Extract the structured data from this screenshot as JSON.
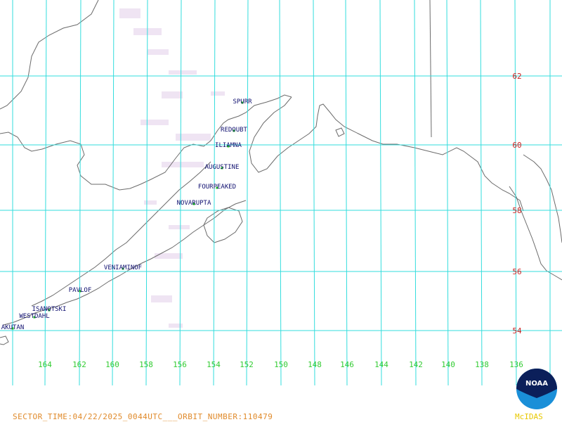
{
  "colors": {
    "grid": "#33dddd",
    "coast": "#6b6b6b",
    "lat_labels": "#cc2222",
    "lon_labels": "#33cc33",
    "volcano_labels": "#101070",
    "volcano_dot": "#22bb22",
    "footer": "#e08a2a",
    "noaa_text": "#e8c800",
    "noaa_blue": "#1a8fd8",
    "noaa_navy": "#0b1f5a",
    "cloud": "#e8d8ee"
  },
  "latitudes": [
    {
      "label": "62"
    },
    {
      "label": "60"
    },
    {
      "label": "58"
    },
    {
      "label": "56"
    },
    {
      "label": "54"
    }
  ],
  "longitudes": [
    {
      "label": "164"
    },
    {
      "label": "162"
    },
    {
      "label": "160"
    },
    {
      "label": "158"
    },
    {
      "label": "156"
    },
    {
      "label": "154"
    },
    {
      "label": "152"
    },
    {
      "label": "150"
    },
    {
      "label": "148"
    },
    {
      "label": "146"
    },
    {
      "label": "144"
    },
    {
      "label": "142"
    },
    {
      "label": "140"
    },
    {
      "label": "138"
    },
    {
      "label": "136"
    }
  ],
  "volcanoes": [
    {
      "name": "SPURR"
    },
    {
      "name": "REDOUBT"
    },
    {
      "name": "ILIAMNA"
    },
    {
      "name": "AUGUSTINE"
    },
    {
      "name": "FOURPEAKED"
    },
    {
      "name": "NOVARUPTA"
    },
    {
      "name": "VENIAMINOF"
    },
    {
      "name": "PAVLOF"
    },
    {
      "name": "ISANOTSKI"
    },
    {
      "name": "WESTDAHL"
    },
    {
      "name": "AKUTAN"
    }
  ],
  "footer": {
    "text": "SECTOR_TIME:04/22/2025_0044UTC___ORBIT_NUMBER:110479"
  },
  "logo": {
    "emblem_text": "NOAA",
    "caption": "McIDAS"
  }
}
